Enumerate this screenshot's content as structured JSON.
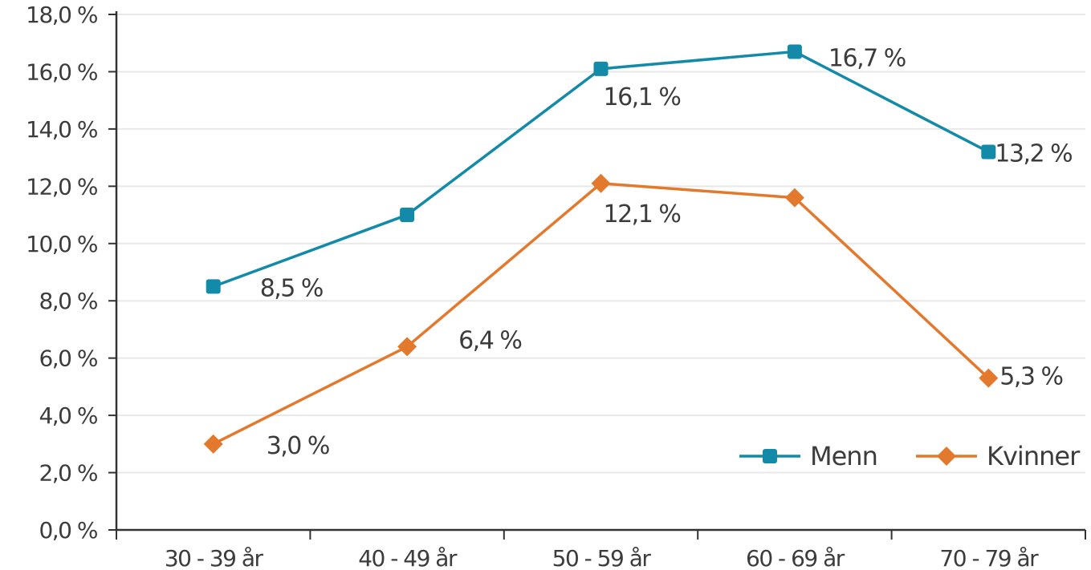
{
  "chart_data": {
    "type": "line",
    "title": "",
    "xlabel": "",
    "ylabel": "",
    "categories": [
      "30 - 39 år",
      "40 - 49 år",
      "50 - 59 år",
      "60 - 69 år",
      "70 - 79 år"
    ],
    "ylim": [
      0,
      18
    ],
    "y_ticks": [
      0,
      2,
      4,
      6,
      8,
      10,
      12,
      14,
      16,
      18
    ],
    "y_tick_labels": [
      "0,0 %",
      "2,0 %",
      "4,0 %",
      "6,0 %",
      "8,0 %",
      "10,0 %",
      "12,0 %",
      "14,0 %",
      "16,0 %",
      "18,0 %"
    ],
    "grid": true,
    "legend_position": "bottom-right",
    "series": [
      {
        "name": "Menn",
        "color": "#138aa8",
        "marker": "square",
        "values": [
          8.5,
          11.0,
          16.1,
          16.7,
          13.2
        ],
        "data_labels": [
          "8,5 %",
          "",
          "16,1 %",
          "16,7 %",
          "13,2 %"
        ]
      },
      {
        "name": "Kvinner",
        "color": "#e3792d",
        "marker": "diamond",
        "values": [
          3.0,
          6.4,
          12.1,
          11.6,
          5.3
        ],
        "data_labels": [
          "3,0 %",
          "6,4 %",
          "12,1 %",
          "",
          "5,3 %"
        ]
      }
    ]
  }
}
